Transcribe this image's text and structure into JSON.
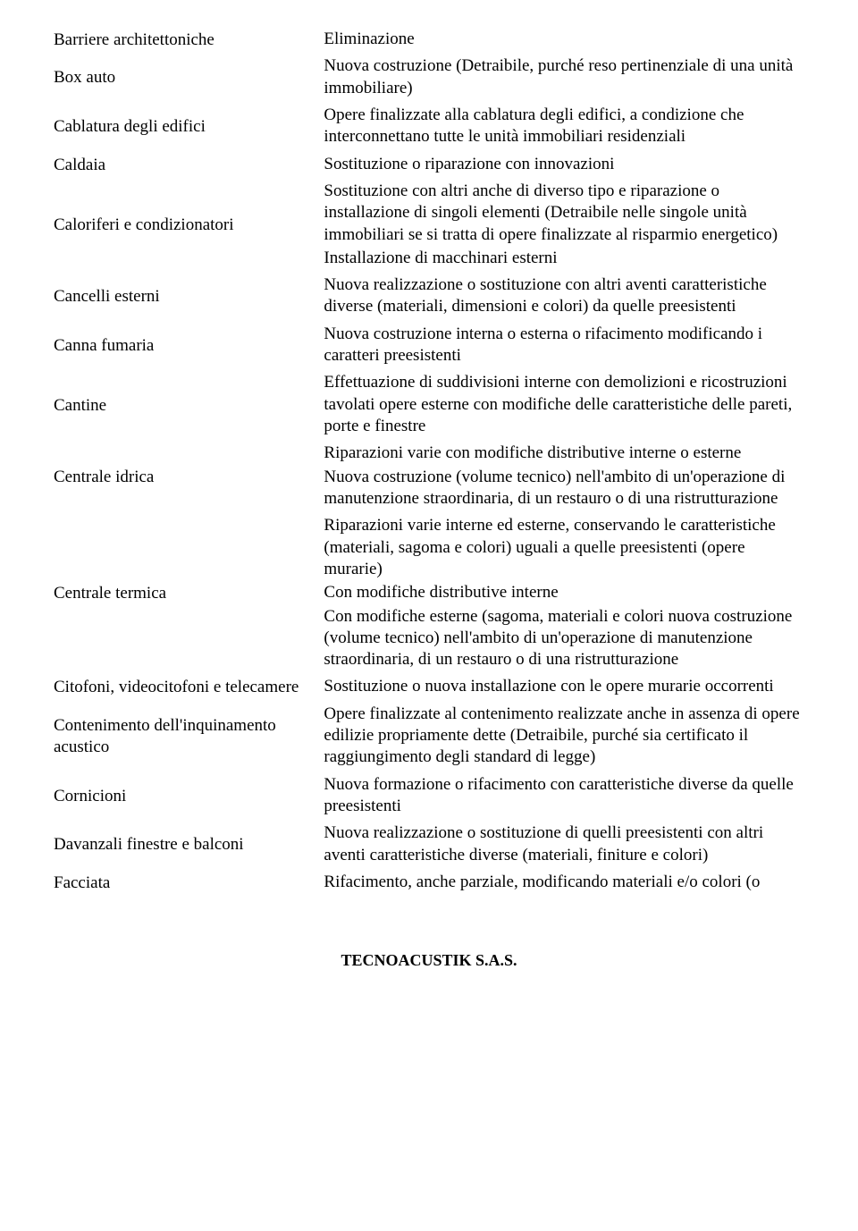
{
  "rows": [
    {
      "left": "Barriere architettoniche",
      "right": [
        "Eliminazione"
      ]
    },
    {
      "left": "Box auto",
      "right": [
        "Nuova costruzione (Detraibile, purché reso pertinenziale di una unità immobiliare)"
      ]
    },
    {
      "left": "Cablatura degli edifici",
      "right": [
        "Opere finalizzate alla cablatura degli edifici, a condizione che interconnettano tutte le unità immobiliari residenziali"
      ]
    },
    {
      "left": "Caldaia",
      "right": [
        "Sostituzione o riparazione con innovazioni"
      ]
    },
    {
      "left": "Caloriferi e condizionatori",
      "right": [
        "Sostituzione con altri anche di diverso tipo e riparazione o installazione di singoli elementi (Detraibile nelle singole unità immobiliari se si tratta di opere finalizzate al risparmio energetico)",
        "Installazione di macchinari esterni"
      ]
    },
    {
      "left": "Cancelli esterni",
      "right": [
        "Nuova realizzazione o sostituzione con altri aventi caratteristiche diverse (materiali, dimensioni e colori) da quelle preesistenti"
      ]
    },
    {
      "left": "Canna fumaria",
      "right": [
        "Nuova costruzione interna o esterna o rifacimento modificando i caratteri preesistenti"
      ]
    },
    {
      "left": "Cantine",
      "right": [
        "Effettuazione di suddivisioni interne con demolizioni e ricostruzioni tavolati opere esterne con modifiche delle caratteristiche delle pareti, porte e finestre"
      ]
    },
    {
      "left": "Centrale idrica",
      "right": [
        "Riparazioni varie con modifiche distributive interne o esterne",
        "Nuova costruzione (volume tecnico) nell'ambito di un'operazione di manutenzione straordinaria, di un restauro o di una ristrutturazione"
      ]
    },
    {
      "left": "Centrale termica",
      "right": [
        "Riparazioni varie interne ed esterne, conservando le caratteristiche (materiali, sagoma e colori) uguali a quelle preesistenti (opere murarie)",
        "Con modifiche distributive interne",
        "Con modifiche esterne (sagoma, materiali e colori nuova costruzione (volume tecnico) nell'ambito di un'operazione di manutenzione straordinaria, di un restauro o di una ristrutturazione"
      ]
    },
    {
      "left": "Citofoni, videocitofoni e telecamere",
      "right": [
        "Sostituzione o nuova installazione con le opere murarie occorrenti"
      ]
    },
    {
      "left": "Contenimento dell'inquinamento acustico",
      "right": [
        "Opere finalizzate al contenimento realizzate anche in assenza di opere edilizie propriamente dette (Detraibile, purché sia certificato il raggiungimento degli standard di legge)"
      ]
    },
    {
      "left": "Cornicioni",
      "right": [
        "Nuova formazione o rifacimento con caratteristiche diverse da quelle preesistenti"
      ]
    },
    {
      "left": "Davanzali finestre e balconi",
      "right": [
        "Nuova realizzazione o sostituzione di quelli preesistenti con altri aventi caratteristiche diverse (materiali, finiture e colori)"
      ]
    },
    {
      "left": "Facciata",
      "right": [
        "Rifacimento, anche parziale, modificando materiali e/o colori (o"
      ]
    }
  ],
  "footer": "TECNOACUSTIK S.A.S."
}
